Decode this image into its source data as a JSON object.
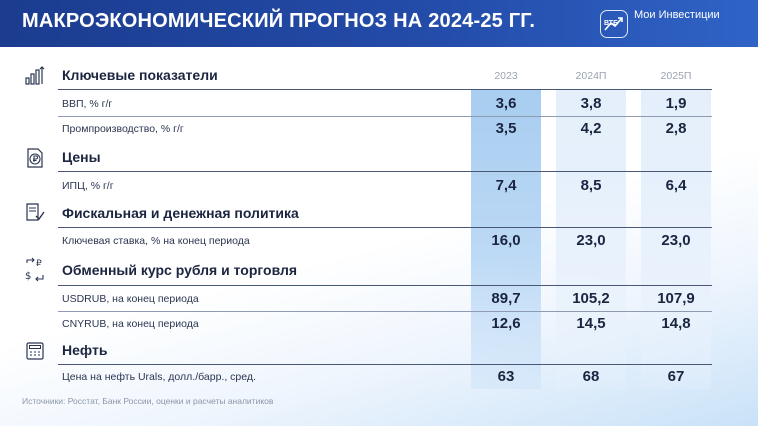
{
  "header": {
    "title": "МАКРОЭКОНОМИЧЕСКИЙ ПРОГНОЗ НА 2024-25 ГГ.",
    "brand_badge": "ВТБ",
    "brand_name": "Мои Инвестиции"
  },
  "columns": [
    "2023",
    "2024П",
    "2025П"
  ],
  "sections": [
    {
      "title": "Ключевые показатели",
      "icon": "bar-chart-icon",
      "rows": [
        {
          "label": "ВВП, % г/г",
          "values": [
            "3,6",
            "3,8",
            "1,9"
          ]
        },
        {
          "label": "Промпроизводство, % г/г",
          "values": [
            "3,5",
            "4,2",
            "2,8"
          ]
        }
      ]
    },
    {
      "title": "Цены",
      "icon": "ruble-tag-icon",
      "rows": [
        {
          "label": "ИПЦ, % г/г",
          "values": [
            "7,4",
            "8,5",
            "6,4"
          ]
        }
      ]
    },
    {
      "title": "Фискальная и денежная политика",
      "icon": "document-check-icon",
      "rows": [
        {
          "label": "Ключевая ставка, % на конец периода",
          "values": [
            "16,0",
            "23,0",
            "23,0"
          ]
        }
      ]
    },
    {
      "title": "Обменный курс рубля и торговля",
      "icon": "currency-exchange-icon",
      "rows": [
        {
          "label": "USDRUB, на конец периода",
          "values": [
            "89,7",
            "105,2",
            "107,9"
          ]
        },
        {
          "label": "CNYRUB, на конец периода",
          "values": [
            "12,6",
            "14,5",
            "14,8"
          ]
        }
      ]
    },
    {
      "title": "Нефть",
      "icon": "oil-barrel-icon",
      "rows": [
        {
          "label": "Цена на нефть Urals, долл./барр., сред.",
          "values": [
            "63",
            "68",
            "67"
          ]
        }
      ]
    }
  ],
  "footer": {
    "source": "Источники: Росстат, Банк России, оценки и расчеты аналитиков"
  },
  "colors": {
    "header": "#1b3c8f",
    "highlight_2023": "#a8cdf0",
    "highlight_forecast": "#e4effb"
  }
}
